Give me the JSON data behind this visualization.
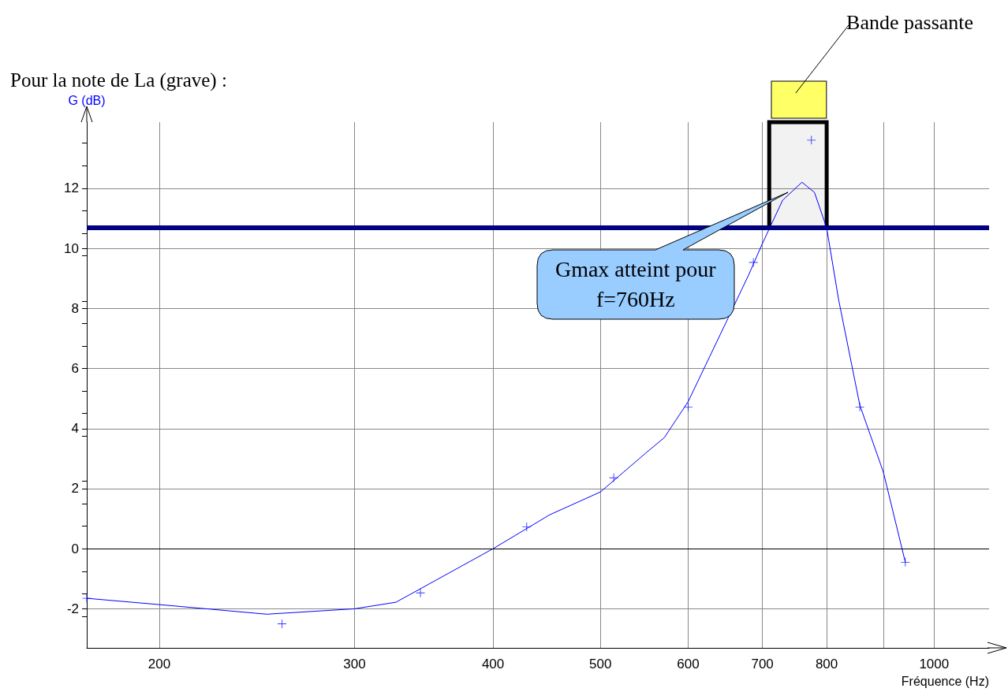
{
  "chart_data": {
    "type": "scatter",
    "title": "Pour la note de La (grave) :",
    "xlabel": "Fréquence (Hz)",
    "ylabel": "G (dB)",
    "log": "x",
    "grid": true,
    "xlim": [
      172,
      1121
    ],
    "xticks": [
      200,
      300,
      400,
      500,
      600,
      700,
      800,
      {
        "value": 900,
        "label": null
      },
      1000
    ],
    "ylim": [
      -3.3,
      14.2
    ],
    "yticks": [
      -2,
      0,
      2,
      4,
      6,
      8,
      10,
      12
    ],
    "series": [
      {
        "color": "#0000ff",
        "marker": "cross",
        "x": [
          172,
          258,
          344,
          429,
          514,
          600,
          687,
          775,
          857,
          942
        ],
        "values": [
          -1.65,
          -2.5,
          -1.47,
          0.73,
          2.36,
          4.72,
          9.53,
          13.6,
          4.72,
          -0.45
        ]
      },
      {
        "type": "line",
        "color": "#0000ff",
        "marker": "none",
        "line_style": "solid",
        "x": [
          172,
          200,
          250,
          300,
          327,
          400,
          450,
          500,
          550,
          571,
          600,
          649,
          680,
          700,
          730,
          760,
          780,
          800,
          820,
          857,
          900,
          942
        ],
        "values": [
          -1.65,
          -1.86,
          -2.18,
          -2.0,
          -1.78,
          0,
          1.13,
          1.89,
          3.2,
          3.7,
          4.9,
          7.53,
          9.1,
          10.16,
          11.6,
          12.2,
          11.86,
          10.68,
          8.3,
          4.78,
          2.55,
          -0.45
        ]
      }
    ],
    "ref_lines": [
      {
        "axis": "y",
        "value": 10.7,
        "color": "#000080"
      },
      {
        "axis": "y",
        "value": 0,
        "color": "#000000"
      }
    ],
    "bands": [
      {
        "axis": "x",
        "from": 710,
        "to": 800,
        "label": "Bande passante",
        "color": "#000000"
      }
    ],
    "annotations": [
      "Gmax atteint pour f=760Hz"
    ]
  }
}
